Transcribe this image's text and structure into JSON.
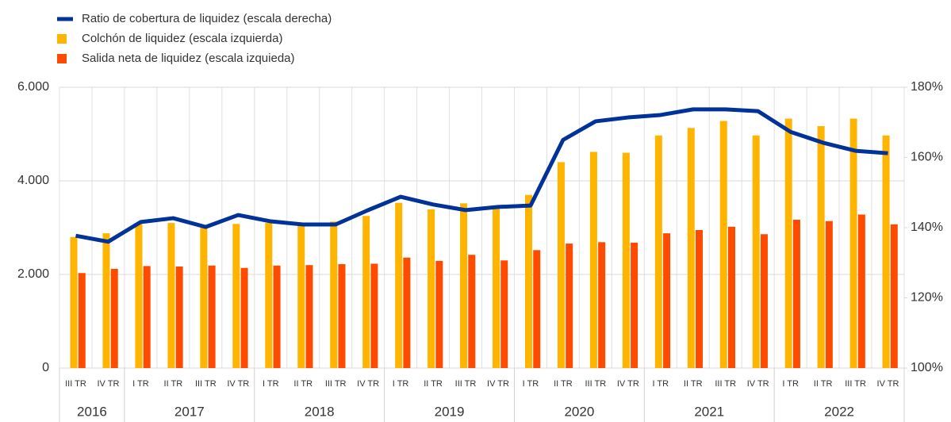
{
  "chart_data": {
    "type": "bar_line",
    "groups": [
      {
        "label": "2016",
        "categories": [
          "III TR",
          "IV TR"
        ]
      },
      {
        "label": "2017",
        "categories": [
          "I TR",
          "II TR",
          "III TR",
          "IV TR"
        ]
      },
      {
        "label": "2018",
        "categories": [
          "I TR",
          "II TR",
          "III TR",
          "IV TR"
        ]
      },
      {
        "label": "2019",
        "categories": [
          "I TR",
          "II TR",
          "III TR",
          "IV TR"
        ]
      },
      {
        "label": "2020",
        "categories": [
          "I TR",
          "II TR",
          "III TR",
          "IV TR"
        ]
      },
      {
        "label": "2021",
        "categories": [
          "I TR",
          "II TR",
          "III TR",
          "IV TR"
        ]
      },
      {
        "label": "2022",
        "categories": [
          "I TR",
          "II TR",
          "III TR",
          "IV TR"
        ]
      }
    ],
    "series": [
      {
        "name": "Ratio de cobertura de liquidez (escala derecha)",
        "type": "line",
        "axis": "y2",
        "color": "#003299",
        "values": [
          137.7,
          136.0,
          141.6,
          142.7,
          140.2,
          143.6,
          141.8,
          140.9,
          140.9,
          145.0,
          148.8,
          146.6,
          145.0,
          145.9,
          146.3,
          165.0,
          170.3,
          171.4,
          172.1,
          173.7,
          173.7,
          173.2,
          167.3,
          164.2,
          161.9,
          161.2
        ]
      },
      {
        "name": "Colchón de liquidez (escala izquierda)",
        "type": "bar",
        "color": "#ffb400",
        "values": [
          2800,
          2880,
          3100,
          3100,
          3000,
          3080,
          3100,
          3050,
          3130,
          3250,
          3530,
          3390,
          3520,
          3430,
          3700,
          4400,
          4620,
          4600,
          4970,
          5130,
          5280,
          4970,
          5330,
          5170,
          5330,
          4970
        ]
      },
      {
        "name": "Salida neta de liquidez (escala izquieda)",
        "type": "bar",
        "color": "#ff4b00",
        "values": [
          2030,
          2120,
          2180,
          2170,
          2190,
          2140,
          2190,
          2200,
          2220,
          2230,
          2360,
          2290,
          2420,
          2300,
          2520,
          2660,
          2690,
          2680,
          2880,
          2950,
          3020,
          2860,
          3170,
          3140,
          3280,
          3070
        ]
      }
    ],
    "ylim": [
      0,
      6000
    ],
    "yticks": [
      0,
      {
        "value": 2000,
        "label": "2.000"
      },
      {
        "value": 4000,
        "label": "4.000"
      },
      {
        "value": 6000,
        "label": "6.000"
      }
    ],
    "y2lim": [
      100,
      180
    ],
    "y2ticks": [
      {
        "value": 100,
        "label": "100%"
      },
      {
        "value": 120,
        "label": "120%"
      },
      {
        "value": 140,
        "label": "140%"
      },
      {
        "value": 160,
        "label": "160%"
      },
      {
        "value": 180,
        "label": "180%"
      }
    ],
    "grid": true
  }
}
